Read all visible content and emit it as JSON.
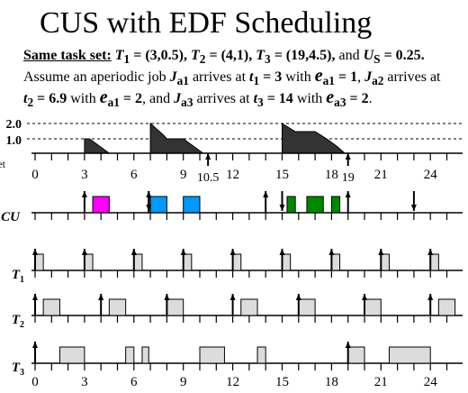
{
  "title": "CUS with EDF Scheduling",
  "intro": {
    "lead": "Same task set:",
    "t1": "T",
    "t1_sub": "1",
    "t1_val": " = (3,0.5), ",
    "t2": "T",
    "t2_sub": "2",
    "t2_val": " = (4,1), ",
    "t3": "T",
    "t3_sub": "3",
    "t3_val": " = (19,4.5),",
    "and": " and ",
    "us": "U",
    "us_sub": "S",
    "us_val": " = 0.25."
  },
  "line2": {
    "a": "Assume an aperiodic job ",
    "ja1": "J",
    "ja1_sub": "a1",
    "b": " arrives at ",
    "t1": "t",
    "t1_sub": "1",
    "t1_val": " = 3",
    "c": " with ",
    "e": "e",
    "e_sub": "a1",
    "e_val": " = 1",
    "d": ", ",
    "ja2": "J",
    "ja2_sub": "a2",
    "e2": " arrives at"
  },
  "line3": {
    "t2": "t",
    "t2_sub": "2",
    "t2_val": " = 6.9",
    "a": " with ",
    "e": "e",
    "e_sub": "a1",
    "e_val": " = 2",
    "b": ", and ",
    "ja3": "J",
    "ja3_sub": "a3",
    "c": " arrives at ",
    "t3": "t",
    "t3_sub": "3",
    "t3_val": " = 14",
    "d": " with ",
    "e3": "e",
    "e3_sub": "a3",
    "e3_val": " = 2",
    "end": "."
  },
  "budget": {
    "y_labels": [
      "2.0",
      "1.0"
    ],
    "left_label": "et",
    "x_ticks": [
      "0",
      "3",
      "6",
      "9",
      "12",
      "15",
      "18",
      "21",
      "24"
    ],
    "extra_ticks": [
      "10.5",
      "19"
    ],
    "trapezoids": [
      {
        "t0": 3,
        "rise": 2,
        "t_end": 4.5,
        "plateau_end": 3.3
      },
      {
        "t0": 7,
        "rise": 2,
        "t_end": 10.2,
        "plateau_end": 7.4
      },
      {
        "t0": 15,
        "rise": 2,
        "t_end": 18.8,
        "plateau_end": 15.3
      }
    ]
  },
  "rows": [
    {
      "label": "CU",
      "label_sub": "",
      "arrows_up": [
        3,
        6.9,
        14,
        19
      ],
      "arrows_down": [
        6.9,
        15,
        23
      ],
      "boxes": [
        {
          "start": 3.5,
          "end": 4.5,
          "color": "#ff00ff"
        },
        {
          "start": 7,
          "end": 8,
          "color": "#0099ff"
        },
        {
          "start": 9,
          "end": 10,
          "color": "#0099ff"
        },
        {
          "start": 15.3,
          "end": 15.8,
          "color": "#008800"
        },
        {
          "start": 16.5,
          "end": 17.5,
          "color": "#008800"
        },
        {
          "start": 18,
          "end": 18.5,
          "color": "#008800"
        }
      ]
    },
    {
      "label": "T",
      "label_sub": "1",
      "arrows_up": [
        0,
        3,
        6,
        9,
        12,
        15,
        18,
        21,
        24
      ],
      "arrows_down": [],
      "boxes": [
        {
          "start": 0,
          "end": 0.5
        },
        {
          "start": 3,
          "end": 3.5
        },
        {
          "start": 6,
          "end": 6.5
        },
        {
          "start": 9,
          "end": 9.5
        },
        {
          "start": 12,
          "end": 12.5
        },
        {
          "start": 15,
          "end": 15.5
        },
        {
          "start": 18,
          "end": 18.5
        },
        {
          "start": 21,
          "end": 21.5
        },
        {
          "start": 24,
          "end": 24.5
        }
      ]
    },
    {
      "label": "T",
      "label_sub": "2",
      "arrows_up": [
        0,
        4,
        8,
        12,
        16,
        20,
        24
      ],
      "arrows_down": [],
      "boxes": [
        {
          "start": 0.5,
          "end": 1.5
        },
        {
          "start": 4.5,
          "end": 5.5
        },
        {
          "start": 8,
          "end": 9
        },
        {
          "start": 12.5,
          "end": 13.5
        },
        {
          "start": 16,
          "end": 17
        },
        {
          "start": 20,
          "end": 21
        },
        {
          "start": 24.5,
          "end": 25.5
        }
      ]
    },
    {
      "label": "T",
      "label_sub": "3",
      "arrows_up": [
        0,
        19
      ],
      "arrows_down": [],
      "boxes": [
        {
          "start": 1.5,
          "end": 3
        },
        {
          "start": 5.5,
          "end": 6
        },
        {
          "start": 6.5,
          "end": 6.9
        },
        {
          "start": 10,
          "end": 11.5
        },
        {
          "start": 13.5,
          "end": 14
        },
        {
          "start": 19,
          "end": 20
        },
        {
          "start": 21.5,
          "end": 24
        }
      ]
    }
  ],
  "bottom_ticks": [
    "0",
    "3",
    "6",
    "9",
    "12",
    "15",
    "18",
    "21",
    "24"
  ]
}
